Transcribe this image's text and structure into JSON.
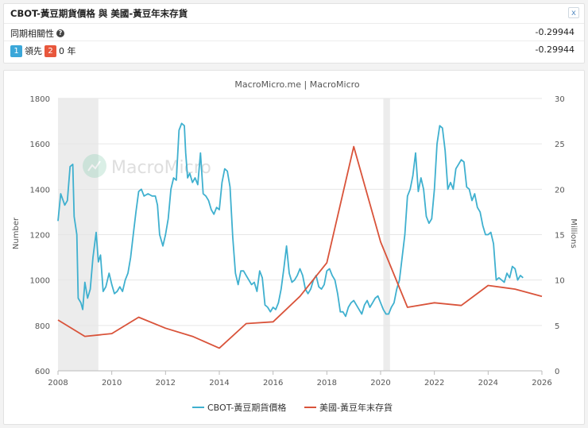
{
  "header": {
    "title": "CBOT-黃豆期貨價格 與 美國-黃豆年末存貨",
    "close_label": "x",
    "correlation_label": "同期相關性",
    "correlation_help": "?",
    "correlation_value": "-0.29944",
    "lead_badge": "1",
    "lead_label": "領先",
    "lag_badge": "2",
    "lag_value": "0 年",
    "lag_corr_value": "-0.29944"
  },
  "watermark": "MacroMicro",
  "chart_data": {
    "type": "line",
    "title": "MacroMicro.me | MacroMicro",
    "ylabel_left": "Number",
    "ylabel_right": "Millions",
    "x_ticks": [
      "2008",
      "2010",
      "2012",
      "2014",
      "2016",
      "2018",
      "2020",
      "2022",
      "2024",
      "2026"
    ],
    "x_range": [
      2008,
      2026
    ],
    "y_left_ticks": [
      "1800",
      "1600",
      "1400",
      "1200",
      "1000",
      "800",
      "600"
    ],
    "y_left_range": [
      600,
      1800
    ],
    "y_right_ticks": [
      "30",
      "25",
      "20",
      "15",
      "10",
      "5",
      "0"
    ],
    "y_right_range": [
      0,
      30
    ],
    "shaded_periods": [
      [
        2008.0,
        2009.5
      ],
      [
        2020.1,
        2020.35
      ]
    ],
    "colors": {
      "cbot": "#3fb0cf",
      "stocks": "#d9533a",
      "shade": "#ececec"
    },
    "series": [
      {
        "name": "CBOT-黃豆期貨價格",
        "axis": "left",
        "points": [
          [
            2008.0,
            1260
          ],
          [
            2008.1,
            1380
          ],
          [
            2008.25,
            1330
          ],
          [
            2008.35,
            1350
          ],
          [
            2008.45,
            1500
          ],
          [
            2008.55,
            1510
          ],
          [
            2008.6,
            1280
          ],
          [
            2008.7,
            1200
          ],
          [
            2008.75,
            920
          ],
          [
            2008.85,
            900
          ],
          [
            2008.92,
            870
          ],
          [
            2009.0,
            990
          ],
          [
            2009.1,
            920
          ],
          [
            2009.2,
            960
          ],
          [
            2009.3,
            1100
          ],
          [
            2009.42,
            1210
          ],
          [
            2009.5,
            1080
          ],
          [
            2009.58,
            1110
          ],
          [
            2009.68,
            950
          ],
          [
            2009.78,
            970
          ],
          [
            2009.9,
            1030
          ],
          [
            2010.0,
            980
          ],
          [
            2010.1,
            940
          ],
          [
            2010.2,
            950
          ],
          [
            2010.3,
            970
          ],
          [
            2010.4,
            950
          ],
          [
            2010.5,
            1000
          ],
          [
            2010.6,
            1030
          ],
          [
            2010.7,
            1100
          ],
          [
            2010.8,
            1200
          ],
          [
            2010.9,
            1300
          ],
          [
            2011.0,
            1390
          ],
          [
            2011.1,
            1400
          ],
          [
            2011.2,
            1370
          ],
          [
            2011.35,
            1380
          ],
          [
            2011.5,
            1370
          ],
          [
            2011.62,
            1370
          ],
          [
            2011.7,
            1330
          ],
          [
            2011.78,
            1200
          ],
          [
            2011.9,
            1150
          ],
          [
            2012.0,
            1200
          ],
          [
            2012.1,
            1270
          ],
          [
            2012.2,
            1400
          ],
          [
            2012.3,
            1450
          ],
          [
            2012.4,
            1440
          ],
          [
            2012.5,
            1660
          ],
          [
            2012.6,
            1690
          ],
          [
            2012.7,
            1680
          ],
          [
            2012.75,
            1560
          ],
          [
            2012.82,
            1450
          ],
          [
            2012.9,
            1470
          ],
          [
            2013.0,
            1430
          ],
          [
            2013.1,
            1450
          ],
          [
            2013.2,
            1420
          ],
          [
            2013.3,
            1560
          ],
          [
            2013.4,
            1380
          ],
          [
            2013.5,
            1370
          ],
          [
            2013.6,
            1350
          ],
          [
            2013.7,
            1310
          ],
          [
            2013.8,
            1290
          ],
          [
            2013.9,
            1320
          ],
          [
            2014.0,
            1310
          ],
          [
            2014.1,
            1430
          ],
          [
            2014.2,
            1490
          ],
          [
            2014.3,
            1480
          ],
          [
            2014.4,
            1410
          ],
          [
            2014.5,
            1190
          ],
          [
            2014.6,
            1030
          ],
          [
            2014.7,
            980
          ],
          [
            2014.8,
            1040
          ],
          [
            2014.9,
            1040
          ],
          [
            2015.0,
            1020
          ],
          [
            2015.1,
            1000
          ],
          [
            2015.2,
            980
          ],
          [
            2015.3,
            990
          ],
          [
            2015.4,
            950
          ],
          [
            2015.5,
            1040
          ],
          [
            2015.6,
            1010
          ],
          [
            2015.7,
            890
          ],
          [
            2015.8,
            880
          ],
          [
            2015.9,
            860
          ],
          [
            2016.0,
            880
          ],
          [
            2016.1,
            870
          ],
          [
            2016.2,
            900
          ],
          [
            2016.3,
            960
          ],
          [
            2016.4,
            1050
          ],
          [
            2016.5,
            1150
          ],
          [
            2016.6,
            1030
          ],
          [
            2016.7,
            990
          ],
          [
            2016.8,
            1000
          ],
          [
            2016.9,
            1020
          ],
          [
            2017.0,
            1050
          ],
          [
            2017.1,
            1020
          ],
          [
            2017.2,
            960
          ],
          [
            2017.3,
            940
          ],
          [
            2017.4,
            960
          ],
          [
            2017.5,
            1000
          ],
          [
            2017.6,
            1020
          ],
          [
            2017.7,
            970
          ],
          [
            2017.8,
            960
          ],
          [
            2017.9,
            980
          ],
          [
            2018.0,
            1040
          ],
          [
            2018.1,
            1050
          ],
          [
            2018.2,
            1020
          ],
          [
            2018.3,
            1000
          ],
          [
            2018.4,
            940
          ],
          [
            2018.5,
            860
          ],
          [
            2018.6,
            860
          ],
          [
            2018.7,
            840
          ],
          [
            2018.8,
            880
          ],
          [
            2018.9,
            900
          ],
          [
            2019.0,
            910
          ],
          [
            2019.1,
            890
          ],
          [
            2019.2,
            870
          ],
          [
            2019.3,
            850
          ],
          [
            2019.4,
            890
          ],
          [
            2019.5,
            910
          ],
          [
            2019.6,
            880
          ],
          [
            2019.7,
            900
          ],
          [
            2019.8,
            920
          ],
          [
            2019.9,
            930
          ],
          [
            2020.0,
            900
          ],
          [
            2020.1,
            870
          ],
          [
            2020.2,
            850
          ],
          [
            2020.3,
            850
          ],
          [
            2020.4,
            880
          ],
          [
            2020.5,
            900
          ],
          [
            2020.6,
            960
          ],
          [
            2020.7,
            1000
          ],
          [
            2020.8,
            1100
          ],
          [
            2020.9,
            1200
          ],
          [
            2021.0,
            1370
          ],
          [
            2021.1,
            1400
          ],
          [
            2021.2,
            1460
          ],
          [
            2021.3,
            1560
          ],
          [
            2021.4,
            1390
          ],
          [
            2021.5,
            1450
          ],
          [
            2021.6,
            1400
          ],
          [
            2021.7,
            1280
          ],
          [
            2021.8,
            1250
          ],
          [
            2021.9,
            1270
          ],
          [
            2022.0,
            1400
          ],
          [
            2022.1,
            1600
          ],
          [
            2022.2,
            1680
          ],
          [
            2022.3,
            1670
          ],
          [
            2022.4,
            1570
          ],
          [
            2022.5,
            1400
          ],
          [
            2022.6,
            1430
          ],
          [
            2022.7,
            1400
          ],
          [
            2022.8,
            1490
          ],
          [
            2022.9,
            1510
          ],
          [
            2023.0,
            1530
          ],
          [
            2023.1,
            1520
          ],
          [
            2023.2,
            1410
          ],
          [
            2023.3,
            1400
          ],
          [
            2023.4,
            1350
          ],
          [
            2023.5,
            1380
          ],
          [
            2023.6,
            1320
          ],
          [
            2023.7,
            1300
          ],
          [
            2023.8,
            1240
          ],
          [
            2023.9,
            1200
          ],
          [
            2024.0,
            1200
          ],
          [
            2024.1,
            1210
          ],
          [
            2024.2,
            1160
          ],
          [
            2024.3,
            1000
          ],
          [
            2024.4,
            1010
          ],
          [
            2024.5,
            1000
          ],
          [
            2024.6,
            990
          ],
          [
            2024.7,
            1030
          ],
          [
            2024.8,
            1010
          ],
          [
            2024.9,
            1060
          ],
          [
            2025.0,
            1050
          ],
          [
            2025.1,
            1000
          ],
          [
            2025.2,
            1020
          ],
          [
            2025.3,
            1010
          ]
        ]
      },
      {
        "name": "美國-黃豆年末存貨",
        "axis": "right",
        "points": [
          [
            2008.0,
            5.6
          ],
          [
            2009.0,
            3.8
          ],
          [
            2010.0,
            4.1
          ],
          [
            2011.0,
            5.9
          ],
          [
            2012.0,
            4.7
          ],
          [
            2013.0,
            3.8
          ],
          [
            2014.0,
            2.5
          ],
          [
            2015.0,
            5.2
          ],
          [
            2016.0,
            5.4
          ],
          [
            2017.0,
            8.2
          ],
          [
            2018.0,
            11.9
          ],
          [
            2019.0,
            24.7
          ],
          [
            2020.0,
            14.2
          ],
          [
            2021.0,
            7.0
          ],
          [
            2022.0,
            7.5
          ],
          [
            2023.0,
            7.2
          ],
          [
            2024.0,
            9.4
          ],
          [
            2025.0,
            9.0
          ],
          [
            2026.0,
            8.2
          ]
        ]
      }
    ],
    "legend": [
      "CBOT-黃豆期貨價格",
      "美國-黃豆年末存貨"
    ],
    "legend_position": "bottom"
  }
}
